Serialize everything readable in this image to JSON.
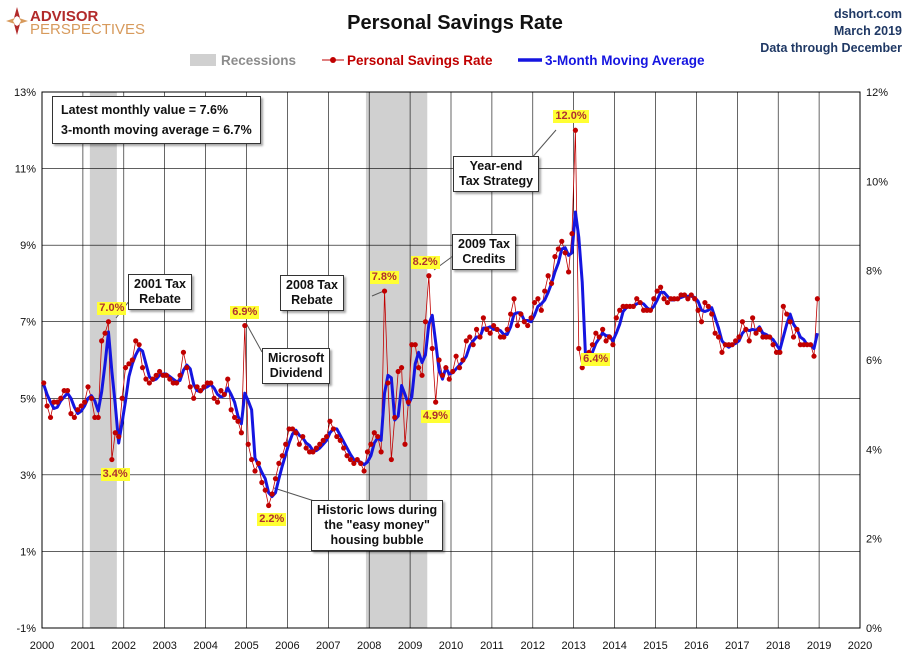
{
  "header": {
    "logo_top": "ADVISOR",
    "logo_bottom": "PERSPECTIVES",
    "title": "Personal Savings Rate",
    "source_lines": [
      "dshort.com",
      "March 2019",
      "Data through December"
    ]
  },
  "colors": {
    "series_points": "#c00000",
    "moving_average": "#1515e0",
    "recession": "#d0d0d0",
    "grid": "#000000",
    "label_bg": "#ffff33",
    "label_text": "#b03030"
  },
  "info_box": {
    "line1": "Latest monthly value = 7.6%",
    "line2": "3-month moving average = 6.7%"
  },
  "annotations": [
    {
      "id": "tax-2001",
      "lines": [
        "2001 Tax",
        "Rebate"
      ]
    },
    {
      "id": "microsoft",
      "lines": [
        "Microsoft",
        "Dividend"
      ]
    },
    {
      "id": "tax-2008",
      "lines": [
        "2008 Tax",
        "Rebate"
      ]
    },
    {
      "id": "credits-2009",
      "lines": [
        "2009 Tax",
        "Credits"
      ]
    },
    {
      "id": "year-end",
      "lines": [
        "Year-end",
        "Tax Strategy"
      ]
    },
    {
      "id": "historic-lows",
      "lines": [
        "Historic lows during",
        "the \"easy money\"",
        "housing bubble"
      ]
    }
  ],
  "value_labels": [
    {
      "text": "7.0%",
      "date": 2001.67,
      "value": 7.0,
      "pos": "above"
    },
    {
      "text": "3.4%",
      "date": 2001.75,
      "value": 3.4,
      "pos": "below"
    },
    {
      "text": "6.9%",
      "date": 2004.92,
      "value": 6.9,
      "pos": "above"
    },
    {
      "text": "2.2%",
      "date": 2005.58,
      "value": 2.2,
      "pos": "below"
    },
    {
      "text": "7.8%",
      "date": 2008.33,
      "value": 7.8,
      "pos": "above"
    },
    {
      "text": "8.2%",
      "date": 2009.33,
      "value": 8.2,
      "pos": "above"
    },
    {
      "text": "4.9%",
      "date": 2009.58,
      "value": 4.9,
      "pos": "below"
    },
    {
      "text": "12.0%",
      "date": 2012.92,
      "value": 12.0,
      "pos": "above"
    },
    {
      "text": "6.4%",
      "date": 2013.5,
      "value": 6.4,
      "pos": "below"
    }
  ],
  "chart_data": {
    "type": "line",
    "title": "Personal Savings Rate",
    "xlabel": "",
    "ylabel": "",
    "x_ticks": [
      "2000",
      "2001",
      "2002",
      "2003",
      "2004",
      "2005",
      "2006",
      "2007",
      "2008",
      "2009",
      "2010",
      "2011",
      "2012",
      "2013",
      "2014",
      "2015",
      "2016",
      "2017",
      "2018",
      "2019",
      "2020"
    ],
    "xlim": [
      2000,
      2020
    ],
    "ylim": [
      -1,
      13
    ],
    "y_ticks_left": [
      "13%",
      "11%",
      "9%",
      "7%",
      "5%",
      "3%",
      "1%",
      "-1%"
    ],
    "y_ticks_right": [
      "12%",
      "10%",
      "8%",
      "6%",
      "4%",
      "2%",
      "0%"
    ],
    "grid": true,
    "legend": {
      "position": "top-center",
      "entries": [
        "Recessions",
        "Personal Savings Rate",
        "3-Month Moving Average"
      ]
    },
    "recessions": [
      [
        2001.17,
        2001.83
      ],
      [
        2007.92,
        2009.42
      ]
    ],
    "start": 2000.0,
    "frequency": "monthly",
    "series": [
      {
        "name": "Personal Savings Rate",
        "values": [
          5.4,
          4.8,
          4.5,
          4.9,
          4.9,
          5.0,
          5.2,
          5.2,
          4.6,
          4.5,
          4.7,
          4.8,
          4.9,
          5.3,
          5.0,
          4.5,
          4.5,
          6.5,
          6.7,
          7.0,
          3.4,
          4.1,
          4.0,
          5.0,
          5.8,
          5.9,
          6.0,
          6.5,
          6.4,
          5.8,
          5.5,
          5.4,
          5.5,
          5.6,
          5.7,
          5.6,
          5.6,
          5.5,
          5.4,
          5.4,
          5.6,
          6.2,
          5.8,
          5.3,
          5.0,
          5.3,
          5.2,
          5.3,
          5.4,
          5.4,
          5.0,
          4.9,
          5.2,
          5.1,
          5.5,
          4.7,
          4.5,
          4.4,
          4.1,
          6.9,
          3.8,
          3.4,
          3.1,
          3.3,
          2.8,
          2.6,
          2.2,
          2.5,
          2.9,
          3.3,
          3.5,
          3.8,
          4.2,
          4.2,
          4.1,
          3.8,
          4.0,
          3.7,
          3.6,
          3.6,
          3.7,
          3.8,
          3.9,
          4.0,
          4.4,
          4.2,
          4.0,
          3.9,
          3.7,
          3.5,
          3.4,
          3.3,
          3.4,
          3.3,
          3.1,
          3.6,
          3.8,
          4.1,
          4.0,
          3.6,
          7.8,
          5.4,
          3.4,
          4.5,
          5.7,
          5.8,
          3.8,
          4.9,
          6.4,
          6.4,
          5.8,
          5.6,
          7.0,
          8.2,
          6.3,
          4.9,
          6.0,
          5.6,
          5.8,
          5.5,
          5.7,
          6.1,
          5.8,
          6.0,
          6.5,
          6.6,
          6.4,
          6.8,
          6.6,
          7.1,
          6.8,
          6.7,
          6.9,
          6.8,
          6.6,
          6.6,
          6.8,
          7.2,
          7.6,
          6.9,
          7.2,
          7.0,
          6.9,
          7.1,
          7.5,
          7.6,
          7.3,
          7.8,
          8.2,
          8.0,
          8.7,
          8.9,
          9.1,
          8.8,
          8.3,
          9.3,
          12.0,
          6.3,
          5.8,
          6.0,
          6.2,
          6.4,
          6.7,
          6.6,
          6.8,
          6.5,
          6.6,
          6.4,
          7.1,
          7.3,
          7.4,
          7.4,
          7.4,
          7.4,
          7.6,
          7.5,
          7.3,
          7.3,
          7.3,
          7.6,
          7.8,
          7.9,
          7.6,
          7.5,
          7.6,
          7.6,
          7.6,
          7.7,
          7.7,
          7.6,
          7.7,
          7.6,
          7.3,
          7.0,
          7.5,
          7.4,
          7.2,
          6.7,
          6.6,
          6.2,
          6.4,
          6.4,
          6.4,
          6.5,
          6.6,
          7.0,
          6.8,
          6.5,
          7.1,
          6.7,
          6.8,
          6.6,
          6.6,
          6.6,
          6.4,
          6.2,
          6.2,
          7.4,
          7.2,
          7.0,
          6.6,
          6.8,
          6.4,
          6.4,
          6.4,
          6.4,
          6.1,
          7.6
        ]
      },
      {
        "name": "3-Month Moving Average",
        "derived_from": "Personal Savings Rate",
        "window": 3
      }
    ]
  }
}
